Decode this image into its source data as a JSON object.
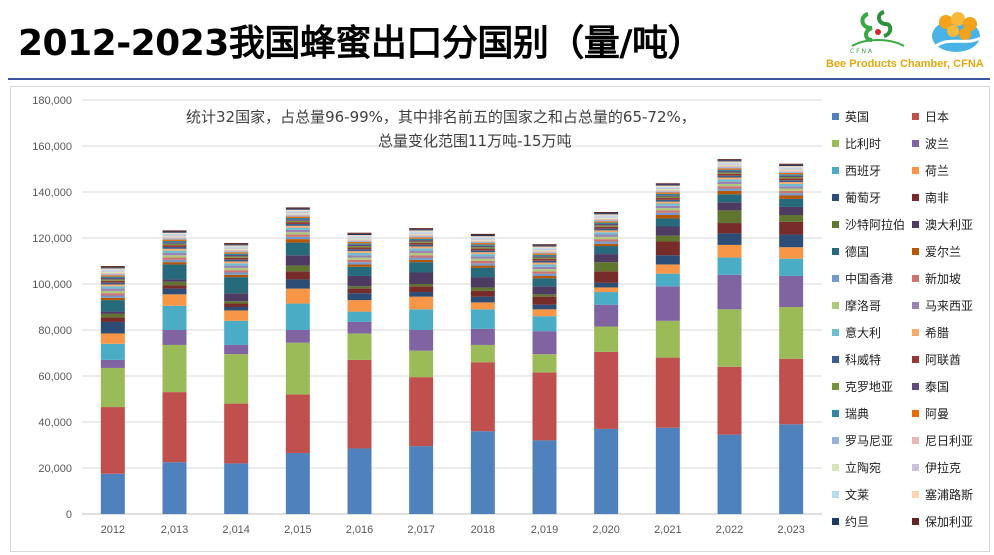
{
  "header": {
    "title": "2012-2023我国蜂蜜出口分国别（量/吨）",
    "org_caption": "Bee Products Chamber, CFNA"
  },
  "annotation": {
    "line1": "统计32国家，占总量96-99%，其中排名前五的国家之和占总量的65-72%，",
    "line2": "总量变化范围11万吨-15万吨"
  },
  "chart_data": {
    "type": "bar",
    "stacked": true,
    "categories": [
      "2012",
      "2,013",
      "2,014",
      "2,015",
      "2,016",
      "2,017",
      "2018",
      "2,019",
      "2,020",
      "2,021",
      "2,022",
      "2,023"
    ],
    "ylim": [
      0,
      180000
    ],
    "y_ticks": [
      "0",
      "20,000",
      "40,000",
      "60,000",
      "80,000",
      "100,000",
      "120,000",
      "140,000",
      "160,000",
      "180,000"
    ],
    "grid": true,
    "legend_position": "right",
    "series": [
      {
        "name": "英国",
        "color": "#4f81bd",
        "values": [
          17500,
          22500,
          22000,
          26500,
          28500,
          29500,
          36000,
          32000,
          37000,
          37500,
          34500,
          39000
        ]
      },
      {
        "name": "日本",
        "color": "#c0504d",
        "values": [
          29000,
          30500,
          26000,
          25500,
          38500,
          30000,
          30000,
          29500,
          33500,
          30500,
          29500,
          28500
        ]
      },
      {
        "name": "比利时",
        "color": "#9bbb59",
        "values": [
          17000,
          20500,
          21500,
          22500,
          11500,
          11500,
          7500,
          8000,
          11000,
          16000,
          25000,
          22500
        ]
      },
      {
        "name": "波兰",
        "color": "#8064a2",
        "values": [
          3500,
          6500,
          4000,
          5500,
          5000,
          9000,
          7000,
          10000,
          9500,
          15000,
          15000,
          13500
        ]
      },
      {
        "name": "西班牙",
        "color": "#4bacc6",
        "values": [
          7000,
          10500,
          10500,
          11500,
          4500,
          9000,
          8500,
          6500,
          5500,
          5500,
          7500,
          7500
        ]
      },
      {
        "name": "荷兰",
        "color": "#f79646",
        "values": [
          4500,
          5000,
          4500,
          6500,
          5000,
          5500,
          3000,
          3000,
          2000,
          4000,
          5500,
          5000
        ]
      },
      {
        "name": "葡萄牙",
        "color": "#2c4d75",
        "values": [
          5000,
          2500,
          1500,
          4000,
          3000,
          2000,
          2500,
          2000,
          2000,
          4000,
          5000,
          5500
        ]
      },
      {
        "name": "南非",
        "color": "#772c2a",
        "values": [
          2000,
          1500,
          1500,
          3500,
          2000,
          2500,
          2500,
          3500,
          5000,
          6000,
          4500,
          5500
        ]
      },
      {
        "name": "沙特阿拉伯",
        "color": "#5f7530",
        "values": [
          1500,
          1500,
          1000,
          2500,
          1000,
          1000,
          1500,
          1000,
          4000,
          2500,
          5500,
          3000
        ]
      },
      {
        "name": "澳大利亚",
        "color": "#4d3b62",
        "values": [
          1000,
          1000,
          3500,
          4500,
          4500,
          5000,
          4500,
          3500,
          3500,
          4000,
          3500,
          3500
        ]
      },
      {
        "name": "德国",
        "color": "#276a7c",
        "values": [
          5000,
          6500,
          7000,
          5500,
          4000,
          4500,
          4000,
          3500,
          3500,
          3500,
          3500,
          3500
        ]
      },
      {
        "name": "爱尔兰",
        "color": "#b65708",
        "values": [
          1000,
          1000,
          1000,
          1500,
          1000,
          1000,
          1000,
          1000,
          1000,
          1500,
          1500,
          1500
        ]
      },
      {
        "name": "中国香港",
        "color": "#729aca",
        "values": [
          1000,
          1000,
          1000,
          1000,
          1000,
          1000,
          1000,
          1000,
          1000,
          1000,
          1000,
          1000
        ]
      },
      {
        "name": "新加坡",
        "color": "#cd7371",
        "values": [
          1000,
          1000,
          1000,
          1000,
          1000,
          1000,
          1000,
          1000,
          1000,
          1000,
          1000,
          1000
        ]
      },
      {
        "name": "摩洛哥",
        "color": "#afc97a",
        "values": [
          1000,
          1000,
          1000,
          1000,
          1000,
          1000,
          1000,
          1000,
          1000,
          1000,
          1000,
          1000
        ]
      },
      {
        "name": "马来西亚",
        "color": "#9983b5",
        "values": [
          1000,
          1000,
          1000,
          1000,
          1000,
          1000,
          1000,
          1000,
          1000,
          1000,
          1000,
          1000
        ]
      },
      {
        "name": "意大利",
        "color": "#6fbdd1",
        "values": [
          1000,
          1000,
          1000,
          1000,
          1000,
          1000,
          1000,
          1000,
          1000,
          1000,
          1000,
          1000
        ]
      },
      {
        "name": "希腊",
        "color": "#f9ab6b",
        "values": [
          800,
          800,
          800,
          800,
          800,
          800,
          800,
          800,
          800,
          800,
          800,
          800
        ]
      },
      {
        "name": "科威特",
        "color": "#3a5e8c",
        "values": [
          800,
          800,
          800,
          800,
          800,
          800,
          800,
          800,
          800,
          800,
          800,
          800
        ]
      },
      {
        "name": "阿联酋",
        "color": "#953735",
        "values": [
          800,
          800,
          800,
          800,
          800,
          800,
          800,
          800,
          800,
          800,
          800,
          800
        ]
      },
      {
        "name": "克罗地亚",
        "color": "#77933c",
        "values": [
          600,
          600,
          600,
          600,
          600,
          600,
          600,
          600,
          600,
          600,
          600,
          600
        ]
      },
      {
        "name": "泰国",
        "color": "#604a7b",
        "values": [
          600,
          600,
          600,
          600,
          600,
          600,
          600,
          600,
          600,
          600,
          600,
          600
        ]
      },
      {
        "name": "瑞典",
        "color": "#31859c",
        "values": [
          600,
          600,
          600,
          600,
          600,
          600,
          600,
          600,
          600,
          600,
          600,
          600
        ]
      },
      {
        "name": "阿曼",
        "color": "#e46c0a",
        "values": [
          600,
          600,
          600,
          600,
          600,
          600,
          600,
          600,
          600,
          600,
          600,
          600
        ]
      },
      {
        "name": "罗马尼亚",
        "color": "#95b3d7",
        "values": [
          500,
          500,
          500,
          500,
          500,
          500,
          500,
          500,
          500,
          500,
          500,
          500
        ]
      },
      {
        "name": "尼日利亚",
        "color": "#e6b9b8",
        "values": [
          500,
          500,
          500,
          500,
          500,
          500,
          500,
          500,
          500,
          500,
          500,
          500
        ]
      },
      {
        "name": "立陶宛",
        "color": "#d7e4bd",
        "values": [
          500,
          500,
          500,
          500,
          500,
          500,
          500,
          500,
          500,
          500,
          500,
          500
        ]
      },
      {
        "name": "伊拉克",
        "color": "#ccc1da",
        "values": [
          500,
          500,
          500,
          500,
          500,
          500,
          500,
          500,
          500,
          500,
          500,
          500
        ]
      },
      {
        "name": "文莱",
        "color": "#b7dee8",
        "values": [
          500,
          500,
          500,
          500,
          500,
          500,
          500,
          500,
          500,
          500,
          500,
          500
        ]
      },
      {
        "name": "塞浦路斯",
        "color": "#fcd5b5",
        "values": [
          500,
          500,
          500,
          500,
          500,
          500,
          500,
          500,
          500,
          500,
          500,
          500
        ]
      },
      {
        "name": "约旦",
        "color": "#1f3864",
        "values": [
          500,
          500,
          500,
          500,
          500,
          500,
          500,
          500,
          500,
          500,
          500,
          500
        ]
      },
      {
        "name": "保加利亚",
        "color": "#632523",
        "values": [
          500,
          500,
          500,
          500,
          500,
          500,
          500,
          500,
          500,
          500,
          500,
          500
        ]
      }
    ]
  }
}
